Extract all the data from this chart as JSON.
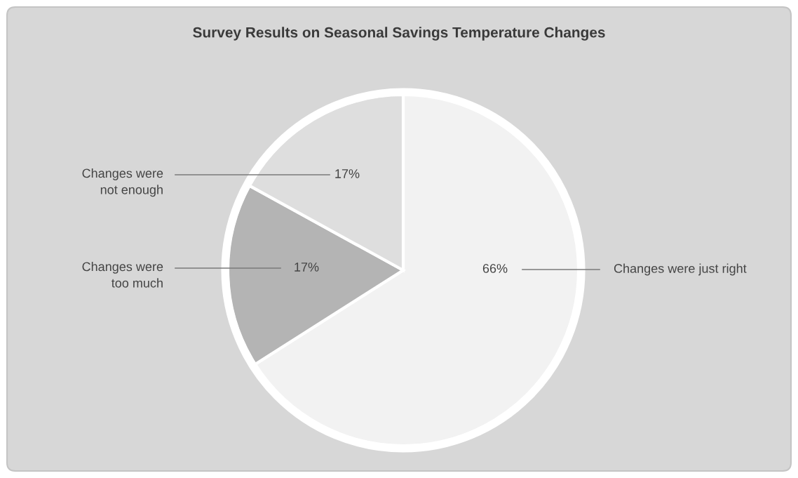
{
  "chart_data": {
    "type": "pie",
    "title": "Survey Results on Seasonal Savings Temperature Changes",
    "categories": [
      "Changes were just right",
      "Changes were\ntoo much",
      "Changes were\nnot enough"
    ],
    "values": [
      66,
      17,
      17
    ],
    "colors": [
      "#f2f2f2",
      "#b4b4b4",
      "#dedede"
    ],
    "value_labels": [
      "66%",
      "17%",
      "17%"
    ]
  }
}
